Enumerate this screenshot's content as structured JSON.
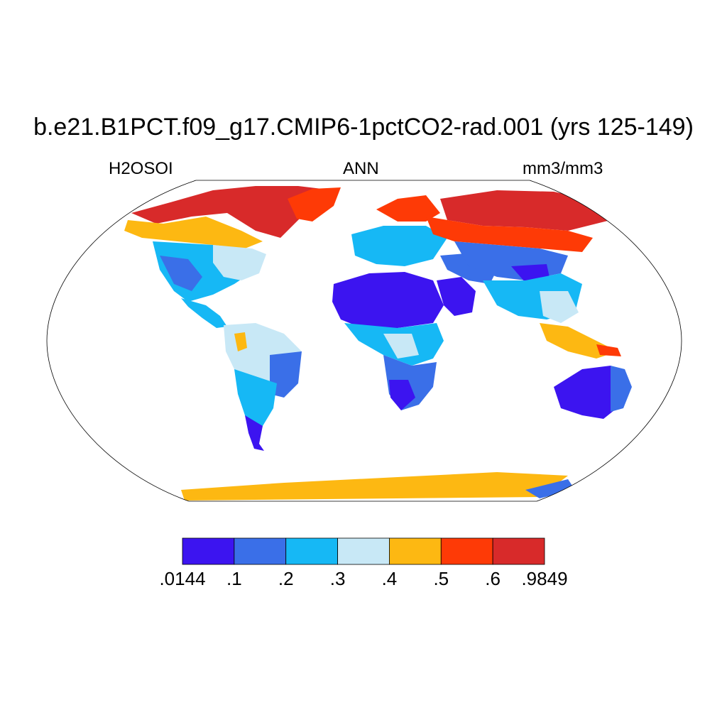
{
  "title": "b.e21.B1PCT.f09_g17.CMIP6-1pctCO2-rad.001 (yrs 125-149)",
  "subtitle_left": "H2OSOI",
  "subtitle_center": "ANN",
  "subtitle_right": "mm3/mm3",
  "colorbar": {
    "colors": [
      "#3c14f0",
      "#3a6fe8",
      "#16b8f5",
      "#c8e8f6",
      "#fdb812",
      "#fe3a06",
      "#d82a2a"
    ],
    "tick_labels": [
      ".0144",
      ".1",
      ".2",
      ".3",
      ".4",
      ".5",
      ".6",
      ".9849"
    ]
  },
  "chart_data": {
    "type": "heatmap",
    "projection": "Robinson-like world map",
    "variable": "H2OSOI",
    "season": "ANN",
    "units": "mm3/mm3",
    "levels": [
      0.0144,
      0.1,
      0.2,
      0.3,
      0.4,
      0.5,
      0.6,
      0.9849
    ],
    "regions": [
      {
        "name": "Sahara",
        "value": 0.05
      },
      {
        "name": "Arabian Peninsula",
        "value": 0.05
      },
      {
        "name": "Australia interior",
        "value": 0.05
      },
      {
        "name": "Patagonia",
        "value": 0.08
      },
      {
        "name": "Southern Africa",
        "value": 0.08
      },
      {
        "name": "Central Asia",
        "value": 0.15
      },
      {
        "name": "Western USA",
        "value": 0.15
      },
      {
        "name": "Eastern USA",
        "value": 0.25
      },
      {
        "name": "Amazon",
        "value": 0.33
      },
      {
        "name": "Central Africa",
        "value": 0.25
      },
      {
        "name": "Europe",
        "value": 0.3
      },
      {
        "name": "Siberia",
        "value": 0.55
      },
      {
        "name": "Canada north",
        "value": 0.65
      },
      {
        "name": "Greenland coast",
        "value": 0.65
      },
      {
        "name": "Maritime Southeast Asia",
        "value": 0.45
      },
      {
        "name": "Antarctica coast",
        "value": 0.35
      }
    ]
  }
}
